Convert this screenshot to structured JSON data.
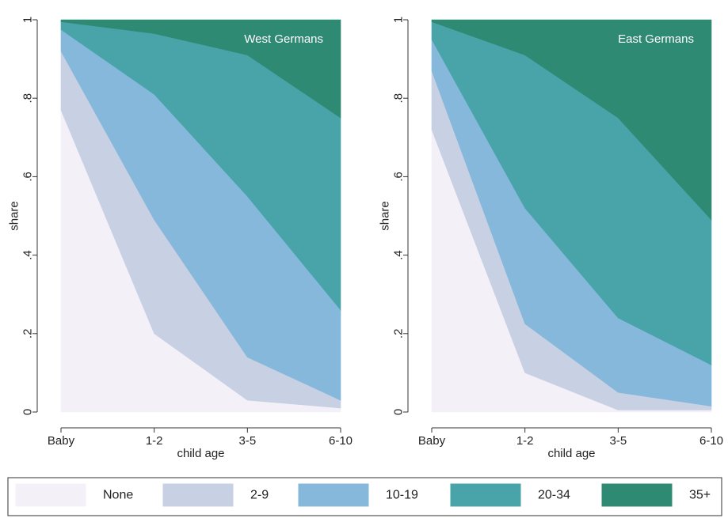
{
  "chart_data": {
    "type": "area",
    "stacked": true,
    "colors": {
      "None": "#f4f0f7",
      "2-9": "#c8d0e4",
      "10-19": "#85b8da",
      "20-34": "#48a4a8",
      "35+": "#2f8a74"
    },
    "legend": {
      "position": "bottom",
      "entries": [
        "None",
        "2-9",
        "10-19",
        "20-34",
        "35+"
      ]
    },
    "panels": [
      {
        "title": "West Germans",
        "categories": [
          "Baby",
          "1-2",
          "3-5",
          "6-10"
        ],
        "xlabel": "child age",
        "ylabel": "share",
        "ylim": [
          0,
          1
        ],
        "yticks": [
          {
            "value": 0,
            "label": "0"
          },
          {
            "value": 0.2,
            "label": ".2"
          },
          {
            "value": 0.4,
            "label": ".4"
          },
          {
            "value": 0.6,
            "label": ".6"
          },
          {
            "value": 0.8,
            "label": ".8"
          },
          {
            "value": 1,
            "label": "1"
          }
        ],
        "grid": false,
        "cumulative_upper_bounds": [
          {
            "name": "None",
            "values": [
              0.77,
              0.2,
              0.03,
              0.01
            ]
          },
          {
            "name": "2-9",
            "values": [
              0.92,
              0.49,
              0.14,
              0.03
            ]
          },
          {
            "name": "10-19",
            "values": [
              0.975,
              0.81,
              0.55,
              0.26
            ]
          },
          {
            "name": "20-34",
            "values": [
              0.995,
              0.965,
              0.91,
              0.75
            ]
          },
          {
            "name": "35+",
            "values": [
              1.0,
              1.0,
              1.0,
              1.0
            ]
          }
        ]
      },
      {
        "title": "East Germans",
        "categories": [
          "Baby",
          "1-2",
          "3-5",
          "6-10"
        ],
        "xlabel": "child age",
        "ylabel": "share",
        "ylim": [
          0,
          1
        ],
        "yticks": [
          {
            "value": 0,
            "label": "0"
          },
          {
            "value": 0.2,
            "label": ".2"
          },
          {
            "value": 0.4,
            "label": ".4"
          },
          {
            "value": 0.6,
            "label": ".6"
          },
          {
            "value": 0.8,
            "label": ".8"
          },
          {
            "value": 1,
            "label": "1"
          }
        ],
        "grid": false,
        "cumulative_upper_bounds": [
          {
            "name": "None",
            "values": [
              0.72,
              0.1,
              0.005,
              0.005
            ]
          },
          {
            "name": "2-9",
            "values": [
              0.87,
              0.225,
              0.05,
              0.015
            ]
          },
          {
            "name": "10-19",
            "values": [
              0.95,
              0.52,
              0.24,
              0.12
            ]
          },
          {
            "name": "20-34",
            "values": [
              0.995,
              0.91,
              0.75,
              0.49
            ]
          },
          {
            "name": "35+",
            "values": [
              1.0,
              1.0,
              1.0,
              1.0
            ]
          }
        ]
      }
    ]
  }
}
